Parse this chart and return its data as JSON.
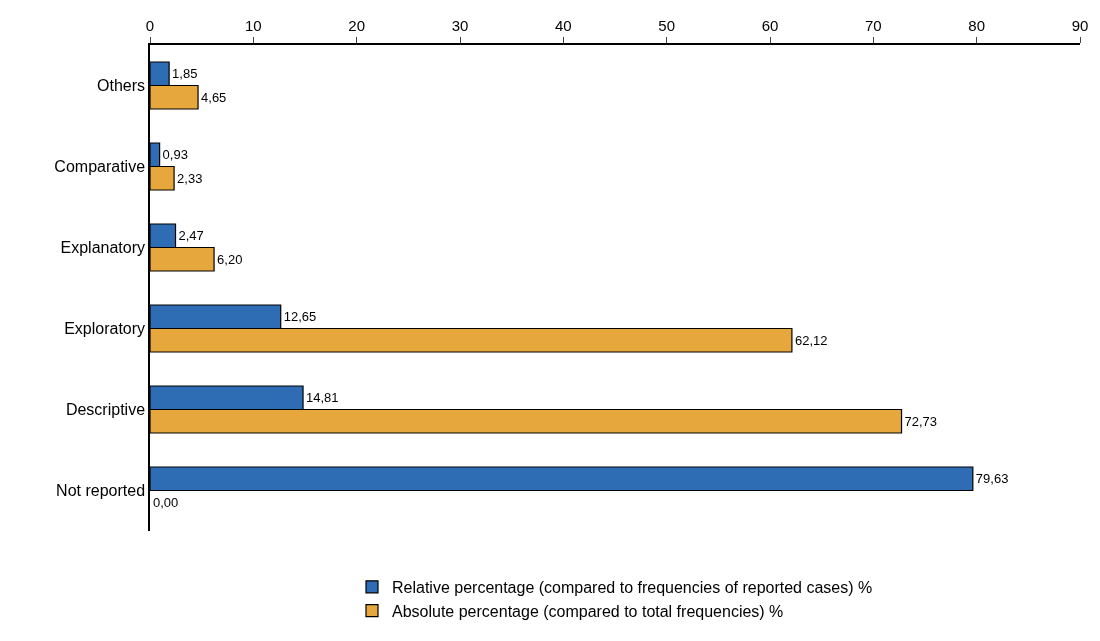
{
  "chart_data": {
    "type": "bar",
    "orientation": "horizontal",
    "categories": [
      "Others",
      "Comparative",
      "Explanatory",
      "Exploratory",
      "Descriptive",
      "Not reported"
    ],
    "series": [
      {
        "name": "Relative percentage (compared to frequencies of reported cases) %",
        "color": "#2e6db4",
        "values": [
          1.85,
          0.93,
          2.47,
          12.65,
          14.81,
          79.63
        ],
        "value_labels": [
          "1,85",
          "0,93",
          "2,47",
          "12,65",
          "14,81",
          "79,63"
        ]
      },
      {
        "name": "Absolute percentage (compared to total frequencies) %",
        "color": "#e6a83c",
        "values": [
          4.65,
          2.33,
          6.2,
          62.12,
          72.73,
          0.0
        ],
        "value_labels": [
          "4,65",
          "2,33",
          "6,20",
          "62,12",
          "72,73",
          "0,00"
        ]
      }
    ],
    "xlim": [
      0,
      90
    ],
    "xticks": [
      0,
      10,
      20,
      30,
      40,
      50,
      60,
      70,
      80,
      90
    ],
    "legend": "bottom"
  }
}
